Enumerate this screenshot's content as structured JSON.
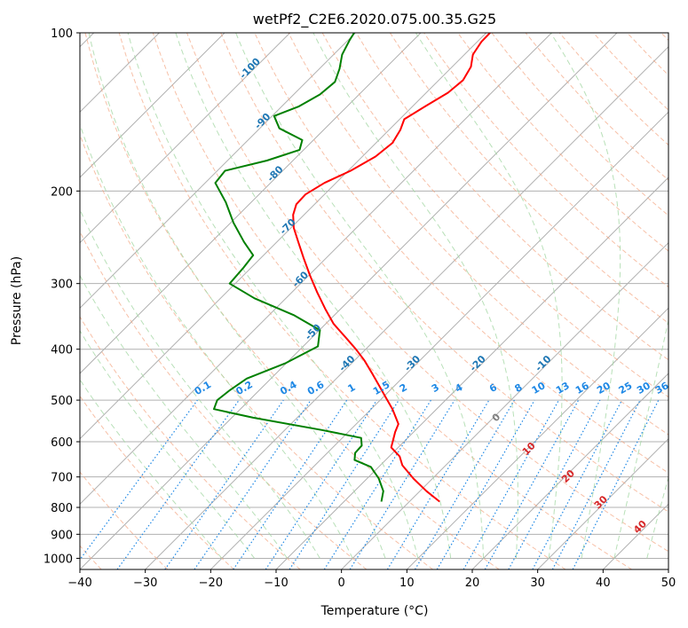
{
  "chart_data": {
    "type": "line",
    "title": "wetPf2_C2E6.2020.075.00.35.G25",
    "xlabel": "Temperature (°C)",
    "ylabel": "Pressure (hPa)",
    "xlim": [
      -40,
      50
    ],
    "ylim": [
      1050,
      100
    ],
    "y_scale": "log",
    "grid": true,
    "x_ticks": [
      "−40",
      "−30",
      "−20",
      "−10",
      "0",
      "10",
      "20",
      "30",
      "40",
      "50"
    ],
    "y_ticks": [
      "100",
      "200",
      "300",
      "400",
      "500",
      "600",
      "700",
      "800",
      "900",
      "1000"
    ],
    "series": [
      {
        "key": "temperature",
        "color": "#ff0000",
        "points": [
          [
            15.0,
            780
          ],
          [
            13.0,
            745
          ],
          [
            11.0,
            705
          ],
          [
            9.3,
            665
          ],
          [
            8.9,
            640
          ],
          [
            7.6,
            615
          ],
          [
            7.9,
            595
          ],
          [
            8.2,
            575
          ],
          [
            8.7,
            555
          ],
          [
            7.8,
            520
          ],
          [
            6.8,
            495
          ],
          [
            5.7,
            468
          ],
          [
            4.7,
            445
          ],
          [
            3.5,
            420
          ],
          [
            2.2,
            400
          ],
          [
            0.8,
            382
          ],
          [
            -1.2,
            358
          ],
          [
            -2.5,
            335
          ],
          [
            -3.7,
            312
          ],
          [
            -4.8,
            290
          ],
          [
            -5.8,
            268
          ],
          [
            -6.6,
            250
          ],
          [
            -7.3,
            235
          ],
          [
            -7.4,
            222
          ],
          [
            -6.9,
            212
          ],
          [
            -5.5,
            203
          ],
          [
            -2.6,
            193
          ],
          [
            1.4,
            183
          ],
          [
            5.2,
            172
          ],
          [
            7.8,
            162
          ],
          [
            9.0,
            153
          ],
          [
            9.6,
            146
          ],
          [
            12.8,
            138
          ],
          [
            16.3,
            130
          ],
          [
            18.6,
            123
          ],
          [
            19.8,
            116
          ],
          [
            20.1,
            110
          ],
          [
            21.4,
            104
          ],
          [
            23.4,
            98
          ]
        ]
      },
      {
        "key": "dewpoint",
        "color": "#008000",
        "points": [
          [
            6.1,
            780
          ],
          [
            6.4,
            745
          ],
          [
            5.7,
            705
          ],
          [
            4.5,
            670
          ],
          [
            2.0,
            650
          ],
          [
            2.1,
            630
          ],
          [
            3.1,
            610
          ],
          [
            3.0,
            590
          ],
          [
            -3.0,
            570
          ],
          [
            -13.5,
            540
          ],
          [
            -19.5,
            520
          ],
          [
            -19.0,
            500
          ],
          [
            -17.2,
            480
          ],
          [
            -14.5,
            455
          ],
          [
            -8.5,
            425
          ],
          [
            -3.6,
            395
          ],
          [
            -3.3,
            368
          ],
          [
            -7.2,
            345
          ],
          [
            -13.3,
            320
          ],
          [
            -17.1,
            300
          ],
          [
            -15.0,
            280
          ],
          [
            -13.5,
            265
          ],
          [
            -14.9,
            250
          ],
          [
            -16.5,
            230
          ],
          [
            -17.7,
            210
          ],
          [
            -19.3,
            193
          ],
          [
            -17.8,
            183
          ],
          [
            -11.4,
            175
          ],
          [
            -6.4,
            167
          ],
          [
            -6.0,
            160
          ],
          [
            -9.5,
            152
          ],
          [
            -10.3,
            144
          ],
          [
            -6.5,
            138
          ],
          [
            -3.3,
            131
          ],
          [
            -1.0,
            124
          ],
          [
            -0.3,
            117
          ],
          [
            0.1,
            110
          ],
          [
            1.3,
            103
          ],
          [
            2.4,
            98
          ]
        ]
      }
    ],
    "mixing_ratio_labels": [
      "0.1",
      "0.2",
      "0.4",
      "0.6",
      "1",
      "1.5",
      "2",
      "3",
      "4",
      "6",
      "8",
      "10",
      "13",
      "16",
      "20",
      "25",
      "30",
      "36"
    ],
    "moist_adiabat_labels": [
      "-100",
      "-90",
      "-80",
      "-70",
      "-60",
      "-50",
      "-40",
      "-30",
      "-20",
      "-10"
    ],
    "dry_adiabat_labels": [
      "0",
      "10",
      "20",
      "30",
      "40"
    ]
  },
  "colors": {
    "temperature": "#ff0000",
    "dewpoint": "#008000",
    "isotherm": "#b0b0b0",
    "dry_adiabat": "#f4a582",
    "moist_adiabat": "#a6d8a6",
    "mixing_ratio": "#1e88e5",
    "moist_label": "#1f77b4",
    "dry_label": "#d62728",
    "zero_label": "#7f7f7f"
  }
}
